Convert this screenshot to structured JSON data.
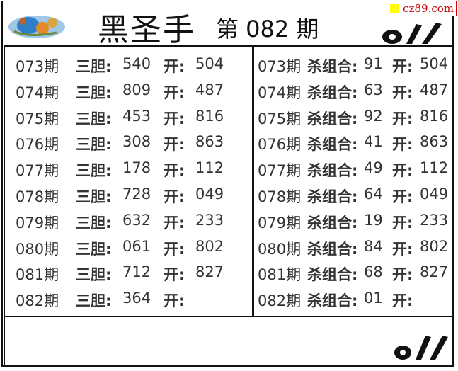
{
  "header": {
    "title": "黑圣手",
    "issue": "第 082 期",
    "watermark": "cz89.com"
  },
  "left_panel": {
    "label": "三胆:",
    "open_label": "开:",
    "rows": [
      {
        "period": "073期",
        "value": "540",
        "open": "504"
      },
      {
        "period": "074期",
        "value": "809",
        "open": "487"
      },
      {
        "period": "075期",
        "value": "453",
        "open": "816"
      },
      {
        "period": "076期",
        "value": "308",
        "open": "863"
      },
      {
        "period": "077期",
        "value": "178",
        "open": "112"
      },
      {
        "period": "078期",
        "value": "728",
        "open": "049"
      },
      {
        "period": "079期",
        "value": "632",
        "open": "233"
      },
      {
        "period": "080期",
        "value": "061",
        "open": "802"
      },
      {
        "period": "081期",
        "value": "712",
        "open": "827"
      },
      {
        "period": "082期",
        "value": "364",
        "open": ""
      }
    ]
  },
  "right_panel": {
    "label": "杀组合:",
    "open_label": "开:",
    "rows": [
      {
        "period": "073期",
        "value": "91",
        "open": "504"
      },
      {
        "period": "074期",
        "value": "63",
        "open": "487"
      },
      {
        "period": "075期",
        "value": "92",
        "open": "816"
      },
      {
        "period": "076期",
        "value": "41",
        "open": "863"
      },
      {
        "period": "077期",
        "value": "49",
        "open": "112"
      },
      {
        "period": "078期",
        "value": "64",
        "open": "049"
      },
      {
        "period": "079期",
        "value": "19",
        "open": "233"
      },
      {
        "period": "080期",
        "value": "84",
        "open": "802"
      },
      {
        "period": "081期",
        "value": "68",
        "open": "827"
      },
      {
        "period": "082期",
        "value": "01",
        "open": ""
      }
    ]
  },
  "colors": {
    "border": "#111111",
    "watermark": "#cc0000",
    "watermark_square": "#ffff00"
  }
}
